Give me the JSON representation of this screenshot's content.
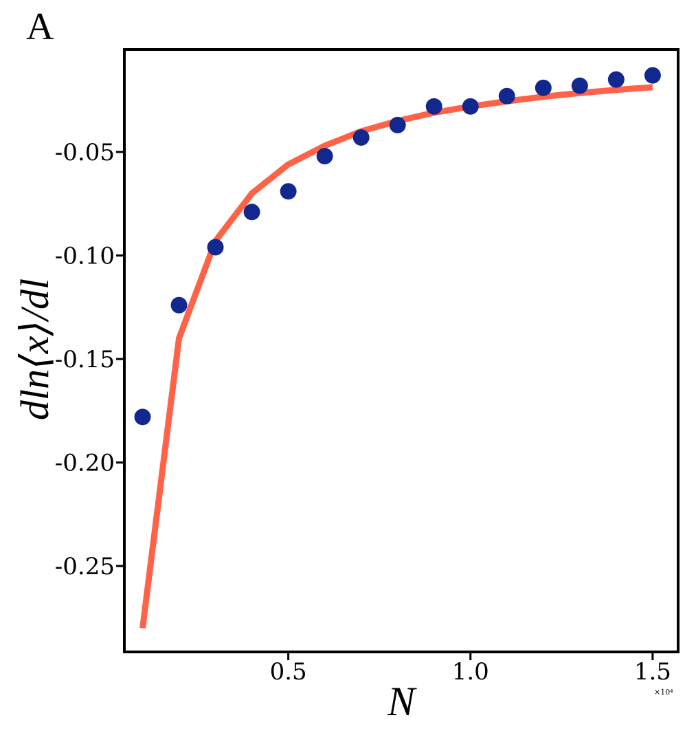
{
  "panel_label": "A",
  "x_multiplier_label": "×10⁴",
  "chart_data": {
    "type": "scatter",
    "xlabel": "N",
    "ylabel": "dln⟨x⟩/dl",
    "xlim": [
      0.05,
      1.57
    ],
    "ylim": [
      -0.2915,
      -0.0005
    ],
    "x_ticks": [
      0.5,
      1.0,
      1.5
    ],
    "x_tick_labels": [
      "0.5",
      "1.0",
      "1.5"
    ],
    "y_ticks": [
      -0.05,
      -0.1,
      -0.15,
      -0.2,
      -0.25
    ],
    "y_tick_labels": [
      "-0.05",
      "-0.10",
      "-0.15",
      "-0.20",
      "-0.25"
    ],
    "grid": false,
    "series": [
      {
        "kind": "points",
        "color": "#13288f",
        "x": [
          0.1,
          0.2,
          0.3,
          0.4,
          0.5,
          0.6,
          0.7,
          0.8,
          0.9,
          1.0,
          1.1,
          1.2,
          1.3,
          1.4,
          1.5
        ],
        "y": [
          -0.178,
          -0.124,
          -0.096,
          -0.079,
          -0.069,
          -0.052,
          -0.043,
          -0.037,
          -0.028,
          -0.028,
          -0.023,
          -0.019,
          -0.018,
          -0.015,
          -0.013
        ]
      },
      {
        "kind": "line",
        "color": "#ff6347",
        "x": [
          0.1,
          0.2,
          0.3,
          0.4,
          0.5,
          0.6,
          0.7,
          0.8,
          0.9,
          1.0,
          1.1,
          1.2,
          1.3,
          1.4,
          1.5
        ],
        "y": [
          -0.28,
          -0.14,
          -0.093,
          -0.07,
          -0.056,
          -0.047,
          -0.04,
          -0.035,
          -0.031,
          -0.028,
          -0.0255,
          -0.0233,
          -0.0215,
          -0.02,
          -0.0187
        ]
      }
    ]
  }
}
